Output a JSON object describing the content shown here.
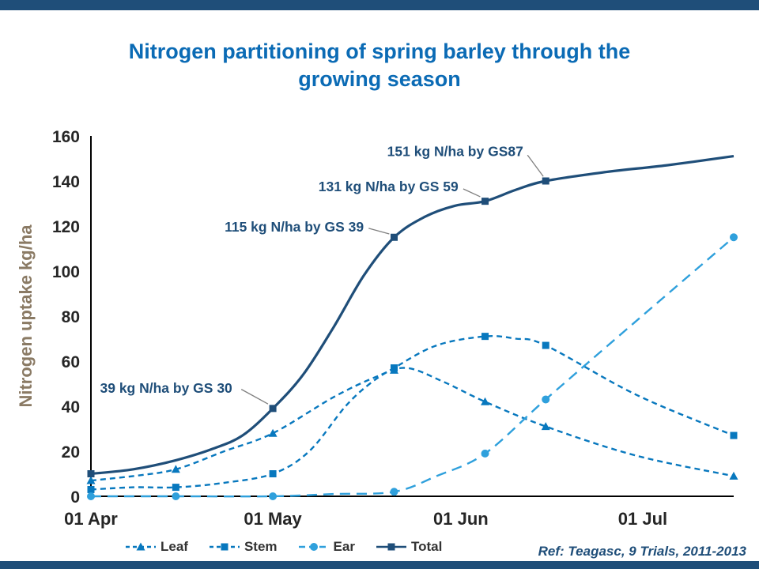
{
  "page": {
    "title": {
      "line1": "Nitrogen partitioning of spring barley through the",
      "line2": "growing season"
    },
    "ref": "Ref: Teagasc, 9 Trials, 2011-2013"
  },
  "colors": {
    "accent_bar": "#1F4E79",
    "title": "#0B6BB5",
    "axis_text": "#262626",
    "y_axis_title": "#8A7A64",
    "annotation": "#1F4E79",
    "leader_line": "#7F7F7F",
    "legend_text": "#333333",
    "ref_text": "#1F4E79",
    "leaf": "#0878BE",
    "stem": "#0878BE",
    "ear": "#2FA0DC",
    "total": "#1F4E79"
  },
  "chart_data": {
    "type": "line",
    "title": "Nitrogen partitioning of spring barley through the growing season",
    "xlabel": "",
    "ylabel": "Nitrogen uptake kg/ha",
    "ylim": [
      0,
      160
    ],
    "y_ticks": [
      0,
      20,
      40,
      60,
      80,
      100,
      120,
      140,
      160
    ],
    "x_unit": "days from 01 Apr",
    "x_range": [
      0,
      106
    ],
    "x_ticks": [
      {
        "label": "01 Apr",
        "x": 0
      },
      {
        "label": "01 May",
        "x": 30
      },
      {
        "label": "01 Jun",
        "x": 61
      },
      {
        "label": "01 Jul",
        "x": 91
      }
    ],
    "grid": false,
    "legend_position": "bottom",
    "series": [
      {
        "name": "Leaf",
        "marker": "triangle",
        "dash": "7 5",
        "color_key": "leaf",
        "line_points": [
          [
            0,
            7
          ],
          [
            7,
            9
          ],
          [
            14,
            12
          ],
          [
            22,
            20
          ],
          [
            30,
            28
          ],
          [
            40,
            44
          ],
          [
            47,
            53
          ],
          [
            52,
            57
          ],
          [
            58,
            51
          ],
          [
            65,
            42
          ],
          [
            75,
            31
          ],
          [
            90,
            18
          ],
          [
            106,
            9
          ]
        ],
        "marker_points": [
          [
            0,
            7
          ],
          [
            14,
            12
          ],
          [
            30,
            28
          ],
          [
            50,
            56
          ],
          [
            65,
            42
          ],
          [
            75,
            31
          ],
          [
            106,
            9
          ]
        ]
      },
      {
        "name": "Stem",
        "marker": "square",
        "dash": "7 5",
        "color_key": "stem",
        "line_points": [
          [
            0,
            3
          ],
          [
            7,
            4
          ],
          [
            14,
            4
          ],
          [
            22,
            6
          ],
          [
            30,
            10
          ],
          [
            36,
            20
          ],
          [
            42,
            40
          ],
          [
            46,
            50
          ],
          [
            50,
            57
          ],
          [
            57,
            67
          ],
          [
            65,
            71
          ],
          [
            70,
            70
          ],
          [
            75,
            67
          ],
          [
            90,
            45
          ],
          [
            106,
            27
          ]
        ],
        "marker_points": [
          [
            0,
            3
          ],
          [
            14,
            4
          ],
          [
            30,
            10
          ],
          [
            50,
            57
          ],
          [
            65,
            71
          ],
          [
            75,
            67
          ],
          [
            106,
            27
          ]
        ]
      },
      {
        "name": "Ear",
        "marker": "circle",
        "dash": "13 8",
        "color_key": "ear",
        "line_points": [
          [
            0,
            0
          ],
          [
            14,
            0
          ],
          [
            30,
            0
          ],
          [
            40,
            1
          ],
          [
            50,
            2
          ],
          [
            57,
            9
          ],
          [
            65,
            19
          ],
          [
            75,
            43
          ],
          [
            90,
            78
          ],
          [
            106,
            115
          ]
        ],
        "marker_points": [
          [
            0,
            0
          ],
          [
            14,
            0
          ],
          [
            30,
            0
          ],
          [
            50,
            2
          ],
          [
            65,
            19
          ],
          [
            75,
            43
          ],
          [
            106,
            115
          ]
        ]
      },
      {
        "name": "Total",
        "marker": "square",
        "dash": null,
        "color_key": "total",
        "line_points": [
          [
            0,
            10
          ],
          [
            7,
            12
          ],
          [
            14,
            16
          ],
          [
            20,
            21
          ],
          [
            25,
            27
          ],
          [
            30,
            39
          ],
          [
            35,
            54
          ],
          [
            40,
            75
          ],
          [
            45,
            98
          ],
          [
            50,
            115
          ],
          [
            55,
            124
          ],
          [
            60,
            129
          ],
          [
            65,
            131
          ],
          [
            70,
            136
          ],
          [
            75,
            140
          ],
          [
            85,
            144
          ],
          [
            95,
            147
          ],
          [
            106,
            151
          ]
        ],
        "marker_points": [
          [
            0,
            10
          ],
          [
            30,
            39
          ],
          [
            50,
            115
          ],
          [
            65,
            131
          ],
          [
            75,
            140
          ]
        ]
      }
    ],
    "annotations": [
      {
        "text": "39 kg N/ha by GS 30",
        "anchor": "start",
        "tx": 1.5,
        "ty": 46,
        "leader": [
          [
            24.8,
            47.5
          ],
          [
            29.2,
            41
          ]
        ]
      },
      {
        "text": "115 kg N/ha by GS 39",
        "anchor": "end",
        "tx": 45,
        "ty": 117.5,
        "leader": [
          [
            45.8,
            119
          ],
          [
            49.2,
            116.5
          ]
        ]
      },
      {
        "text": "131 kg N/ha by GS 59",
        "anchor": "end",
        "tx": 60.6,
        "ty": 135.5,
        "leader": [
          [
            61.4,
            136.5
          ],
          [
            64.2,
            133
          ]
        ]
      },
      {
        "text": "151 kg N/ha by GS87",
        "anchor": "end",
        "tx": 71.3,
        "ty": 151,
        "leader": [
          [
            72,
            151.5
          ],
          [
            74.6,
            142
          ]
        ]
      }
    ],
    "legend": [
      {
        "label": "Leaf",
        "marker": "triangle",
        "dash": "5 4",
        "color_key": "leaf"
      },
      {
        "label": "Stem",
        "marker": "square",
        "dash": "5 4",
        "color_key": "stem"
      },
      {
        "label": "Ear",
        "marker": "circle",
        "dash": "8 5",
        "color_key": "ear"
      },
      {
        "label": "Total",
        "marker": "square",
        "dash": null,
        "color_key": "total"
      }
    ]
  }
}
